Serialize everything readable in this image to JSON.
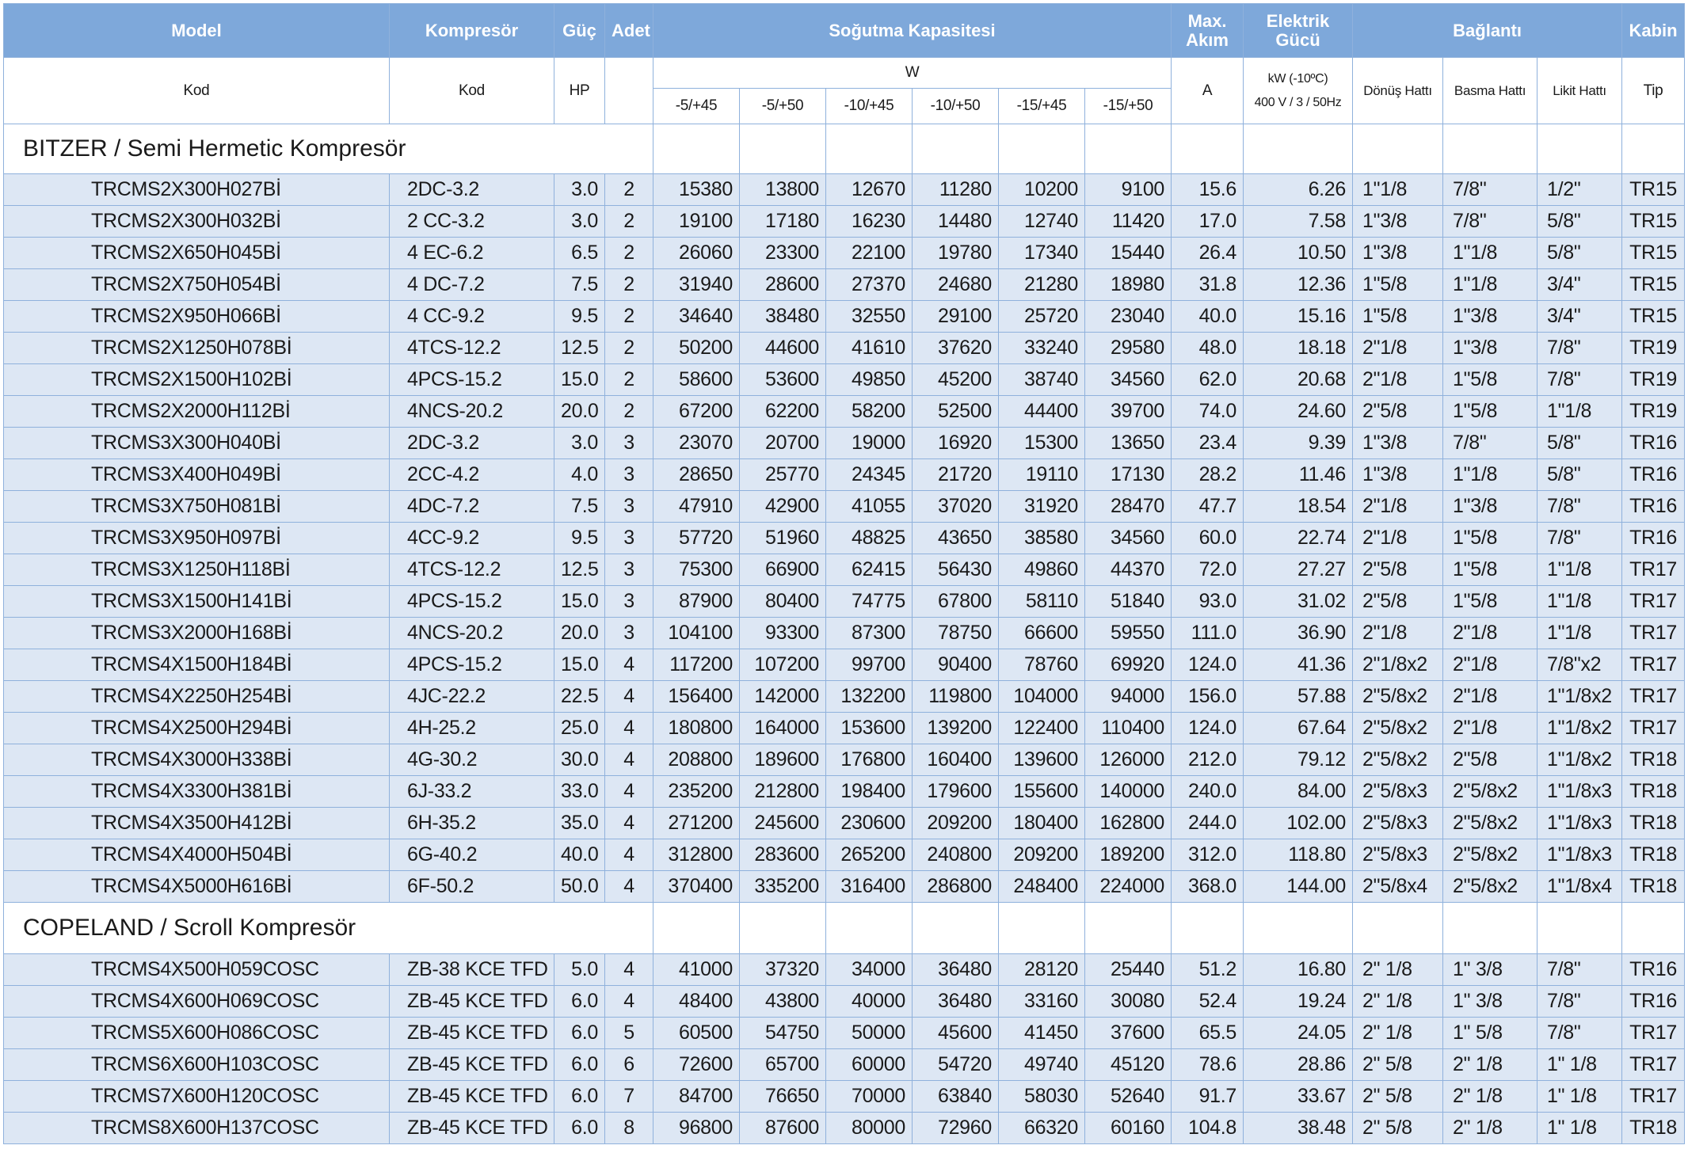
{
  "header": {
    "top": [
      "Model",
      "Kompresör",
      "Güç",
      "Adet",
      "Soğutma Kapasitesi",
      "Max. Akım",
      "Elektrik Gücü",
      "Bağlantı",
      "Kabin"
    ],
    "sub": {
      "model": "Kod",
      "compressor": "Kod",
      "power": "HP",
      "capacity_unit": "W",
      "current": "A",
      "electric": [
        "kW (-10ºC)",
        "400 V / 3 / 50Hz"
      ],
      "connections": [
        "Dönüş Hattı",
        "Basma Hattı",
        "Likit Hattı"
      ],
      "cabin": "Tip"
    },
    "capacity": [
      "-5/+45",
      "-5/+50",
      "-10/+45",
      "-10/+50",
      "-15/+45",
      "-15/+50"
    ]
  },
  "sections": [
    {
      "title": "BITZER  / Semi Hermetic Kompresör",
      "rows": [
        [
          "TRCMS2X300H027Bİ",
          "2DC-3.2",
          "3.0",
          "2",
          "15380",
          "13800",
          "12670",
          "11280",
          "10200",
          "9100",
          "15.6",
          "6.26",
          "1\"1/8",
          "7/8\"",
          "1/2\"",
          "TR15"
        ],
        [
          "TRCMS2X300H032Bİ",
          "2 CC-3.2",
          "3.0",
          "2",
          "19100",
          "17180",
          "16230",
          "14480",
          "12740",
          "11420",
          "17.0",
          "7.58",
          "1\"3/8",
          "7/8\"",
          "5/8\"",
          "TR15"
        ],
        [
          "TRCMS2X650H045Bİ",
          "4 EC-6.2",
          "6.5",
          "2",
          "26060",
          "23300",
          "22100",
          "19780",
          "17340",
          "15440",
          "26.4",
          "10.50",
          "1\"3/8",
          "1\"1/8",
          "5/8\"",
          "TR15"
        ],
        [
          "TRCMS2X750H054Bİ",
          "4 DC-7.2",
          "7.5",
          "2",
          "31940",
          "28600",
          "27370",
          "24680",
          "21280",
          "18980",
          "31.8",
          "12.36",
          "1\"5/8",
          "1\"1/8",
          "3/4\"",
          "TR15"
        ],
        [
          "TRCMS2X950H066Bİ",
          "4 CC-9.2",
          "9.5",
          "2",
          "34640",
          "38480",
          "32550",
          "29100",
          "25720",
          "23040",
          "40.0",
          "15.16",
          "1\"5/8",
          "1\"3/8",
          "3/4\"",
          "TR15"
        ],
        [
          "TRCMS2X1250H078Bİ",
          "4TCS-12.2",
          "12.5",
          "2",
          "50200",
          "44600",
          "41610",
          "37620",
          "33240",
          "29580",
          "48.0",
          "18.18",
          "2\"1/8",
          "1\"3/8",
          "7/8\"",
          "TR19"
        ],
        [
          "TRCMS2X1500H102Bİ",
          "4PCS-15.2",
          "15.0",
          "2",
          "58600",
          "53600",
          "49850",
          "45200",
          "38740",
          "34560",
          "62.0",
          "20.68",
          "2\"1/8",
          "1\"5/8",
          "7/8\"",
          "TR19"
        ],
        [
          "TRCMS2X2000H112Bİ",
          "4NCS-20.2",
          "20.0",
          "2",
          "67200",
          "62200",
          "58200",
          "52500",
          "44400",
          "39700",
          "74.0",
          "24.60",
          "2\"5/8",
          "1\"5/8",
          "1\"1/8",
          "TR19"
        ],
        [
          "TRCMS3X300H040Bİ",
          "2DC-3.2",
          "3.0",
          "3",
          "23070",
          "20700",
          "19000",
          "16920",
          "15300",
          "13650",
          "23.4",
          "9.39",
          "1\"3/8",
          "7/8\"",
          "5/8\"",
          "TR16"
        ],
        [
          "TRCMS3X400H049Bİ",
          "2CC-4.2",
          "4.0",
          "3",
          "28650",
          "25770",
          "24345",
          "21720",
          "19110",
          "17130",
          "28.2",
          "11.46",
          "1\"3/8",
          "1\"1/8",
          "5/8\"",
          "TR16"
        ],
        [
          "TRCMS3X750H081Bİ",
          "4DC-7.2",
          "7.5",
          "3",
          "47910",
          "42900",
          "41055",
          "37020",
          "31920",
          "28470",
          "47.7",
          "18.54",
          "2\"1/8",
          "1\"3/8",
          "7/8\"",
          "TR16"
        ],
        [
          "TRCMS3X950H097Bİ",
          "4CC-9.2",
          "9.5",
          "3",
          "57720",
          "51960",
          "48825",
          "43650",
          "38580",
          "34560",
          "60.0",
          "22.74",
          "2\"1/8",
          "1\"5/8",
          "7/8\"",
          "TR16"
        ],
        [
          "TRCMS3X1250H118Bİ",
          "4TCS-12.2",
          "12.5",
          "3",
          "75300",
          "66900",
          "62415",
          "56430",
          "49860",
          "44370",
          "72.0",
          "27.27",
          "2\"5/8",
          "1\"5/8",
          "1\"1/8",
          "TR17"
        ],
        [
          "TRCMS3X1500H141Bİ",
          "4PCS-15.2",
          "15.0",
          "3",
          "87900",
          "80400",
          "74775",
          "67800",
          "58110",
          "51840",
          "93.0",
          "31.02",
          "2\"5/8",
          "1\"5/8",
          "1\"1/8",
          "TR17"
        ],
        [
          "TRCMS3X2000H168Bİ",
          "4NCS-20.2",
          "20.0",
          "3",
          "104100",
          "93300",
          "87300",
          "78750",
          "66600",
          "59550",
          "111.0",
          "36.90",
          "2\"1/8",
          "2\"1/8",
          "1\"1/8",
          "TR17"
        ],
        [
          "TRCMS4X1500H184Bİ",
          "4PCS-15.2",
          "15.0",
          "4",
          "117200",
          "107200",
          "99700",
          "90400",
          "78760",
          "69920",
          "124.0",
          "41.36",
          "2\"1/8x2",
          "2\"1/8",
          "7/8\"x2",
          "TR17"
        ],
        [
          "TRCMS4X2250H254Bİ",
          "4JC-22.2",
          "22.5",
          "4",
          "156400",
          "142000",
          "132200",
          "119800",
          "104000",
          "94000",
          "156.0",
          "57.88",
          "2\"5/8x2",
          "2\"1/8",
          "1\"1/8x2",
          "TR17"
        ],
        [
          "TRCMS4X2500H294Bİ",
          "4H-25.2",
          "25.0",
          "4",
          "180800",
          "164000",
          "153600",
          "139200",
          "122400",
          "110400",
          "124.0",
          "67.64",
          "2\"5/8x2",
          "2\"1/8",
          "1\"1/8x2",
          "TR17"
        ],
        [
          "TRCMS4X3000H338Bİ",
          "4G-30.2",
          "30.0",
          "4",
          "208800",
          "189600",
          "176800",
          "160400",
          "139600",
          "126000",
          "212.0",
          "79.12",
          "2\"5/8x2",
          "2\"5/8",
          "1\"1/8x2",
          "TR18"
        ],
        [
          "TRCMS4X3300H381Bİ",
          "6J-33.2",
          "33.0",
          "4",
          "235200",
          "212800",
          "198400",
          "179600",
          "155600",
          "140000",
          "240.0",
          "84.00",
          "2\"5/8x3",
          "2\"5/8x2",
          "1\"1/8x3",
          "TR18"
        ],
        [
          "TRCMS4X3500H412Bİ",
          "6H-35.2",
          "35.0",
          "4",
          "271200",
          "245600",
          "230600",
          "209200",
          "180400",
          "162800",
          "244.0",
          "102.00",
          "2\"5/8x3",
          "2\"5/8x2",
          "1\"1/8x3",
          "TR18"
        ],
        [
          "TRCMS4X4000H504Bİ",
          "6G-40.2",
          "40.0",
          "4",
          "312800",
          "283600",
          "265200",
          "240800",
          "209200",
          "189200",
          "312.0",
          "118.80",
          "2\"5/8x3",
          "2\"5/8x2",
          "1\"1/8x3",
          "TR18"
        ],
        [
          "TRCMS4X5000H616Bİ",
          "6F-50.2",
          "50.0",
          "4",
          "370400",
          "335200",
          "316400",
          "286800",
          "248400",
          "224000",
          "368.0",
          "144.00",
          "2\"5/8x4",
          "2\"5/8x2",
          "1\"1/8x4",
          "TR18"
        ]
      ]
    },
    {
      "title": "COPELAND  / Scroll Kompresör",
      "rows": [
        [
          "TRCMS4X500H059COSC",
          "ZB-38 KCE TFD",
          "5.0",
          "4",
          "41000",
          "37320",
          "34000",
          "36480",
          "28120",
          "25440",
          "51.2",
          "16.80",
          "2\" 1/8",
          "1\" 3/8",
          "7/8\"",
          "TR16"
        ],
        [
          "TRCMS4X600H069COSC",
          "ZB-45 KCE TFD",
          "6.0",
          "4",
          "48400",
          "43800",
          "40000",
          "36480",
          "33160",
          "30080",
          "52.4",
          "19.24",
          "2\" 1/8",
          "1\" 3/8",
          "7/8\"",
          "TR16"
        ],
        [
          "TRCMS5X600H086COSC",
          "ZB-45 KCE TFD",
          "6.0",
          "5",
          "60500",
          "54750",
          "50000",
          "45600",
          "41450",
          "37600",
          "65.5",
          "24.05",
          "2\" 1/8",
          "1\" 5/8",
          "7/8\"",
          "TR17"
        ],
        [
          "TRCMS6X600H103COSC",
          "ZB-45 KCE TFD",
          "6.0",
          "6",
          "72600",
          "65700",
          "60000",
          "54720",
          "49740",
          "45120",
          "78.6",
          "28.86",
          "2\" 5/8",
          "2\" 1/8",
          "1\" 1/8",
          "TR17"
        ],
        [
          "TRCMS7X600H120COSC",
          "ZB-45 KCE TFD",
          "6.0",
          "7",
          "84700",
          "76650",
          "70000",
          "63840",
          "58030",
          "52640",
          "91.7",
          "33.67",
          "2\" 5/8",
          "2\" 1/8",
          "1\" 1/8",
          "TR17"
        ],
        [
          "TRCMS8X600H137COSC",
          "ZB-45 KCE TFD",
          "6.0",
          "8",
          "96800",
          "87600",
          "80000",
          "72960",
          "66320",
          "60160",
          "104.8",
          "38.48",
          "2\" 5/8",
          "2\" 1/8",
          "1\" 1/8",
          "TR18"
        ]
      ]
    }
  ]
}
